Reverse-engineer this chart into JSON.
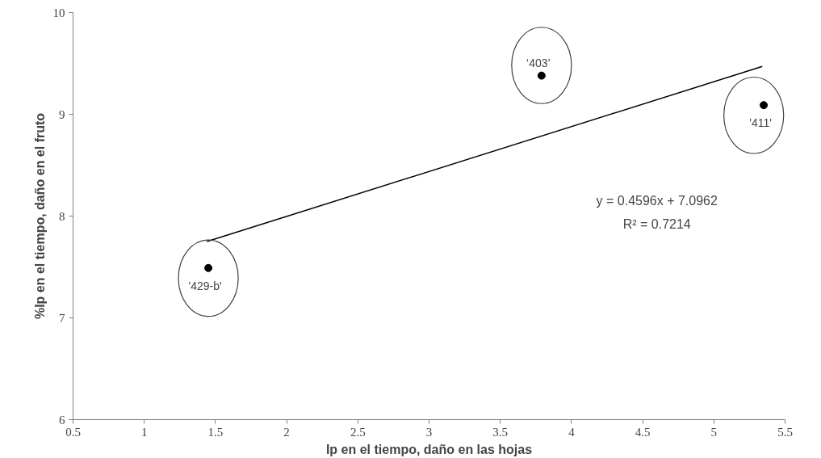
{
  "chart_data": {
    "type": "scatter",
    "xlabel": "Ip en el tiempo, daño en las hojas",
    "ylabel": "%Ip en el tiempo, daño en el fruto",
    "x": [
      1.45,
      3.79,
      5.35
    ],
    "grid": false,
    "xlim": [
      0.5,
      5.5
    ],
    "xticks": [
      0.5,
      1,
      1.5,
      2,
      2.5,
      3,
      3.5,
      4,
      4.5,
      5,
      5.5
    ],
    "ylim": [
      6,
      10
    ],
    "yticks": [
      6,
      7,
      8,
      9,
      10
    ],
    "series": [
      {
        "color": "#000000",
        "values": [
          7.49,
          9.38,
          9.09
        ],
        "marker": "circle"
      },
      {
        "type": "line",
        "color": "#000000",
        "x": [
          1.44,
          5.34
        ],
        "values": [
          7.75,
          9.47
        ],
        "marker": "none"
      }
    ],
    "annotations": [
      {
        "text": "'429-b'",
        "x": 1.45,
        "y": 7.49
      },
      {
        "text": "‘403’",
        "x": 3.79,
        "y": 9.38
      },
      {
        "text": "'411'",
        "x": 5.35,
        "y": 9.09
      },
      "y = 0.4596x + 7.0962\nR² = 0.7214"
    ]
  }
}
